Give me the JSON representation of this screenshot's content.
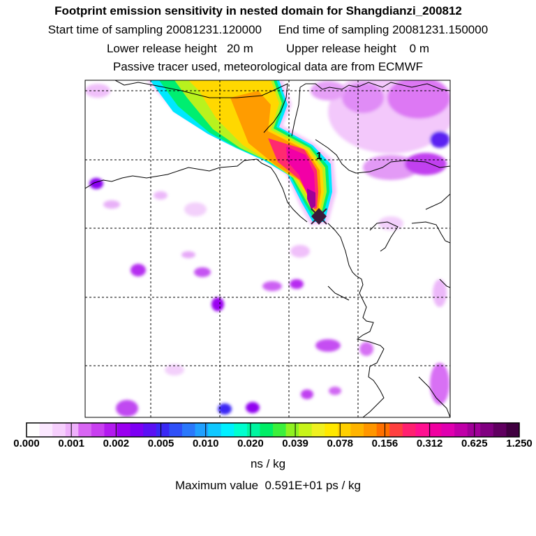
{
  "header": {
    "title": "Footprint emission sensitivity in nested domain for Shangdianzi_200812",
    "line2": "Start time of sampling 20081231.120000     End time of sampling 20081231.150000",
    "line3": "Lower release height   20 m          Upper release height    0 m",
    "line4": "Passive tracer used, meteorological data are from ECMWF"
  },
  "map": {
    "release_marker": "1",
    "release_symbol": "diamond-marker"
  },
  "colorbar": {
    "tick_labels": [
      "0.000",
      "0.001",
      "0.002",
      "0.005",
      "0.010",
      "0.020",
      "0.039",
      "0.078",
      "0.156",
      "0.312",
      "0.625",
      "1.250"
    ],
    "colors": [
      "#ffffff",
      "#fbe8ff",
      "#f6cffd",
      "#eeb0fb",
      "#d866f3",
      "#c83ff0",
      "#b31aef",
      "#9a00f0",
      "#7d00f4",
      "#5b10f4",
      "#3a28f5",
      "#2f50f8",
      "#2a78fb",
      "#20a0ff",
      "#10c8ff",
      "#00f0ff",
      "#00ffcf",
      "#00f5a0",
      "#00ee66",
      "#3cf03c",
      "#8ff220",
      "#c8f41a",
      "#f0f020",
      "#ffe800",
      "#ffd000",
      "#ffb400",
      "#ff9600",
      "#ff7000",
      "#ff4040",
      "#ff2070",
      "#ff1090",
      "#f000a0",
      "#e000b0",
      "#c000a8",
      "#a00098",
      "#800080",
      "#600060",
      "#400040"
    ],
    "units": "ns / kg",
    "maximum": "Maximum value  0.591E+01 ps / kg"
  }
}
